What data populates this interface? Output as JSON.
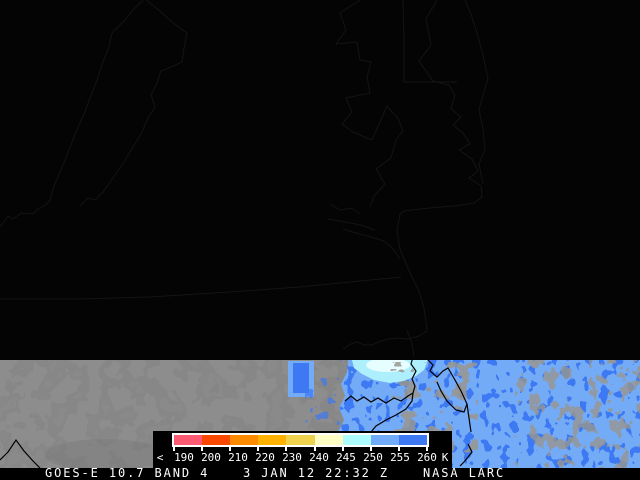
{
  "status_bar": {
    "satellite_label": "GOES-E 10.7 BAND 4",
    "datetime_label": "3 JAN 12 22:32 Z",
    "credit_label": "NASA LARC",
    "text_color": "#ffffff",
    "background": "#000000"
  },
  "legend": {
    "prefix_label": "<",
    "unit_label": "K",
    "tick_labels": [
      "190",
      "200",
      "210",
      "220",
      "230",
      "240",
      "245",
      "250",
      "255",
      "260"
    ],
    "palette": [
      "#fb5a72",
      "#fa4800",
      "#fd8b00",
      "#ffb100",
      "#eed24e",
      "#fdfdc4",
      "#aefdfe",
      "#72acf8",
      "#3e79f3"
    ],
    "background": "#000000",
    "border_color": "#ffffff",
    "tick_color": "#ffffff",
    "label_color": "#ffffff"
  },
  "scene": {
    "space_background": "#040404",
    "faint_outline_color": "#141414",
    "cloud_band": {
      "base_gray": "#8d8d8d",
      "dark_mottle": "#6e6e6e",
      "light_blue": "#74abf7",
      "deep_blue": "#3e79f3",
      "pale_cyan": "#aeeffe",
      "white_cyan": "#e6feff",
      "cloud_gray": "#98968f",
      "coastline_color": "#000000"
    }
  }
}
